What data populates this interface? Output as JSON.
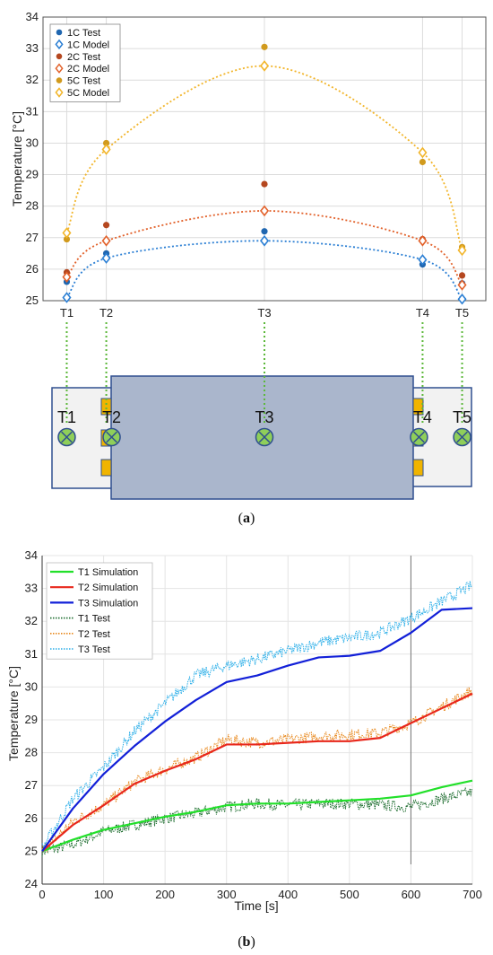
{
  "chart_data": [
    {
      "panel": "a",
      "type": "scatter",
      "ylabel": "Temperature [°C]",
      "ylim": [
        25,
        34
      ],
      "y_ticks": [
        25,
        26,
        27,
        28,
        29,
        30,
        31,
        32,
        33,
        34
      ],
      "categories": [
        "T1",
        "T2",
        "T3",
        "T4",
        "T5"
      ],
      "x_positions": [
        1,
        2,
        6,
        10,
        11
      ],
      "grid": true,
      "legend_position": "top-left",
      "series": [
        {
          "name": "1C Test",
          "marker": "dot",
          "color": "#1f66b0",
          "values": [
            25.6,
            26.5,
            27.2,
            26.15,
            25.55
          ]
        },
        {
          "name": "1C Model",
          "marker": "diamond",
          "color": "#2b7fd4",
          "values": [
            25.1,
            26.35,
            26.9,
            26.3,
            25.05
          ]
        },
        {
          "name": "2C Test",
          "marker": "dot",
          "color": "#b5471f",
          "values": [
            25.9,
            27.4,
            28.7,
            26.95,
            25.8
          ]
        },
        {
          "name": "2C Model",
          "marker": "diamond",
          "color": "#e2612a",
          "values": [
            25.75,
            26.9,
            27.85,
            26.9,
            25.5
          ]
        },
        {
          "name": "5C Test",
          "marker": "dot",
          "color": "#d19a1d",
          "values": [
            26.95,
            30.0,
            33.05,
            29.4,
            26.7
          ]
        },
        {
          "name": "5C Model",
          "marker": "diamond",
          "color": "#f2b52a",
          "values": [
            27.15,
            29.8,
            32.45,
            29.7,
            26.6
          ]
        }
      ],
      "diagram": {
        "sensor_labels": [
          "T1",
          "T2",
          "T3",
          "T4",
          "T5"
        ]
      },
      "caption": "(a)"
    },
    {
      "panel": "b",
      "type": "line",
      "xlabel": "Time [s]",
      "ylabel": "Temperature [°C]",
      "xlim": [
        0,
        700
      ],
      "ylim": [
        24,
        34
      ],
      "x_ticks": [
        0,
        100,
        200,
        300,
        400,
        500,
        600,
        700
      ],
      "y_ticks": [
        24,
        25,
        26,
        27,
        28,
        29,
        30,
        31,
        32,
        33,
        34
      ],
      "grid": true,
      "legend_position": "top-left",
      "series": [
        {
          "name": "T1 Simulation",
          "style": "solid",
          "color": "#22e02a",
          "x": [
            0,
            50,
            100,
            150,
            200,
            250,
            300,
            350,
            400,
            450,
            500,
            550,
            600,
            650,
            700
          ],
          "y": [
            25.0,
            25.35,
            25.65,
            25.85,
            26.05,
            26.2,
            26.4,
            26.45,
            26.45,
            26.5,
            26.55,
            26.6,
            26.7,
            26.95,
            27.15
          ]
        },
        {
          "name": "T2 Simulation",
          "style": "solid",
          "color": "#e8271b",
          "x": [
            0,
            50,
            100,
            150,
            200,
            250,
            300,
            350,
            400,
            450,
            500,
            550,
            600,
            650,
            700
          ],
          "y": [
            25.0,
            25.8,
            26.4,
            27.05,
            27.45,
            27.8,
            28.25,
            28.25,
            28.3,
            28.35,
            28.35,
            28.45,
            28.9,
            29.35,
            29.8
          ]
        },
        {
          "name": "T3 Simulation",
          "style": "solid",
          "color": "#1220d8",
          "x": [
            0,
            50,
            100,
            150,
            200,
            250,
            300,
            350,
            400,
            450,
            500,
            550,
            600,
            650,
            700
          ],
          "y": [
            25.0,
            26.3,
            27.35,
            28.2,
            28.95,
            29.6,
            30.15,
            30.35,
            30.65,
            30.9,
            30.95,
            31.1,
            31.65,
            32.35,
            32.4
          ]
        },
        {
          "name": "T1 Test",
          "style": "dotted",
          "color": "#1a6b2c",
          "x": [
            0,
            50,
            100,
            150,
            200,
            250,
            300,
            350,
            400,
            450,
            500,
            550,
            600,
            650,
            700
          ],
          "y": [
            25.0,
            25.2,
            25.6,
            25.8,
            26.0,
            26.15,
            26.35,
            26.45,
            26.4,
            26.45,
            26.45,
            26.4,
            26.35,
            26.6,
            26.8
          ]
        },
        {
          "name": "T2 Test",
          "style": "dotted",
          "color": "#e8881c",
          "x": [
            0,
            50,
            100,
            150,
            200,
            250,
            300,
            350,
            400,
            450,
            500,
            550,
            600,
            650,
            700
          ],
          "y": [
            25.0,
            25.9,
            26.4,
            27.1,
            27.5,
            27.85,
            28.4,
            28.3,
            28.4,
            28.5,
            28.55,
            28.6,
            28.9,
            29.4,
            29.9
          ]
        },
        {
          "name": "T3 Test",
          "style": "dotted",
          "color": "#2aaee8",
          "x": [
            0,
            50,
            100,
            150,
            200,
            250,
            300,
            350,
            400,
            450,
            500,
            550,
            600,
            650,
            700
          ],
          "y": [
            25.1,
            26.6,
            27.55,
            28.65,
            29.5,
            30.35,
            30.65,
            30.85,
            31.1,
            31.35,
            31.5,
            31.65,
            32.1,
            32.6,
            33.1
          ]
        }
      ],
      "caption": "(b)"
    }
  ]
}
